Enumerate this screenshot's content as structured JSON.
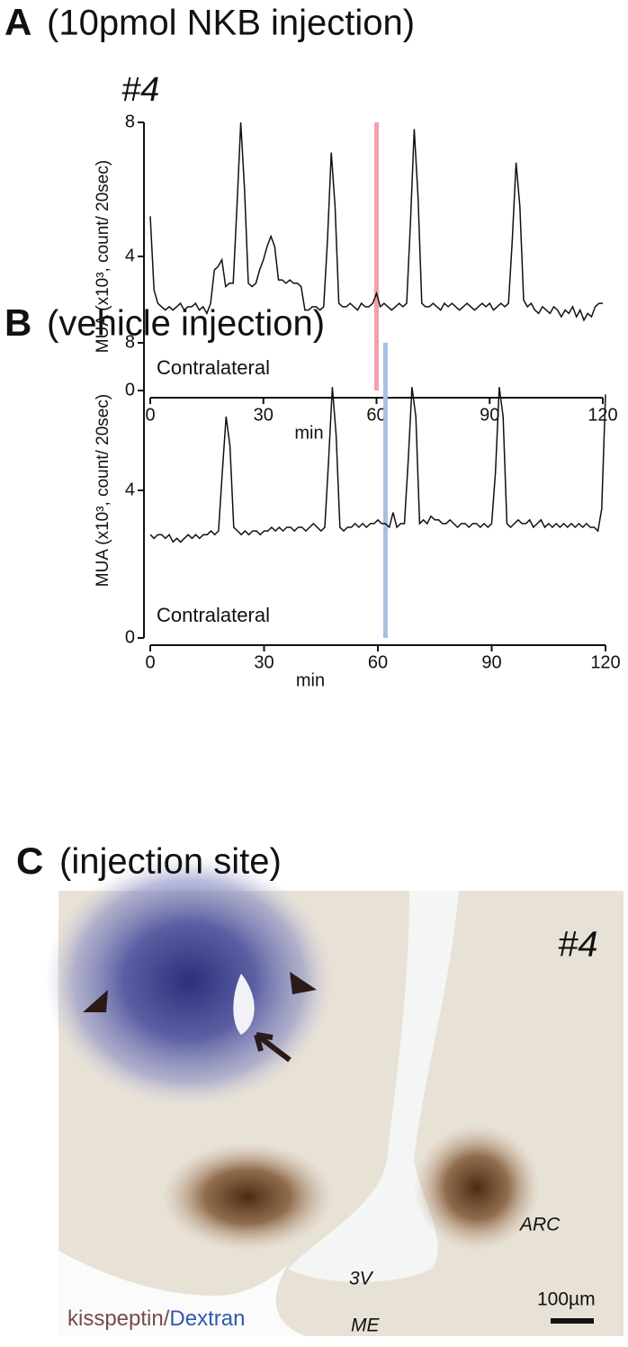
{
  "chart_data": [
    {
      "type": "line",
      "panel_label": "A",
      "title": "(10pmol NKB injection)",
      "subtitle": "#4",
      "ylabel": "MUA (x10³, count/ 20sec)",
      "xlabel": "min",
      "annotation": "Contralateral",
      "color": "#111111",
      "marker_x": 60,
      "marker_color": "#f2a0ae",
      "xlim": [
        0,
        120
      ],
      "ylim": [
        0,
        8
      ],
      "xticks": [
        0,
        30,
        60,
        90,
        120
      ],
      "yticks": [
        0,
        4,
        8
      ],
      "x": [
        0,
        1,
        2,
        3,
        4,
        5,
        6,
        7,
        8,
        9,
        10,
        11,
        12,
        13,
        14,
        15,
        16,
        17,
        18,
        19,
        20,
        21,
        22,
        23,
        24,
        25,
        26,
        27,
        28,
        29,
        30,
        31,
        32,
        33,
        34,
        35,
        36,
        37,
        38,
        39,
        40,
        41,
        42,
        43,
        44,
        45,
        46,
        47,
        48,
        49,
        50,
        51,
        52,
        53,
        54,
        55,
        56,
        57,
        58,
        59,
        60,
        61,
        62,
        63,
        64,
        65,
        66,
        67,
        68,
        69,
        70,
        71,
        72,
        73,
        74,
        75,
        76,
        77,
        78,
        79,
        80,
        81,
        82,
        83,
        84,
        85,
        86,
        87,
        88,
        89,
        90,
        91,
        92,
        93,
        94,
        95,
        96,
        97,
        98,
        99,
        100,
        101,
        102,
        103,
        104,
        105,
        106,
        107,
        108,
        109,
        110,
        111,
        112,
        113,
        114,
        115,
        116,
        117,
        118,
        119,
        120
      ],
      "values": [
        5.2,
        3.0,
        2.6,
        2.5,
        2.4,
        2.5,
        2.4,
        2.5,
        2.6,
        2.4,
        2.5,
        2.5,
        2.6,
        2.4,
        2.5,
        2.3,
        2.6,
        3.6,
        3.7,
        3.9,
        3.1,
        3.2,
        3.2,
        5.5,
        8.0,
        6.0,
        3.2,
        3.1,
        3.2,
        3.6,
        3.9,
        4.3,
        4.6,
        4.3,
        3.3,
        3.3,
        3.2,
        3.3,
        3.2,
        3.2,
        3.1,
        2.4,
        2.4,
        2.5,
        2.5,
        2.4,
        2.5,
        4.5,
        7.1,
        5.5,
        2.6,
        2.5,
        2.5,
        2.6,
        2.5,
        2.4,
        2.6,
        2.5,
        2.5,
        2.6,
        2.9,
        2.5,
        2.6,
        2.5,
        2.4,
        2.5,
        2.6,
        2.5,
        2.6,
        5.0,
        7.8,
        5.8,
        2.6,
        2.5,
        2.5,
        2.6,
        2.5,
        2.4,
        2.6,
        2.5,
        2.6,
        2.5,
        2.4,
        2.5,
        2.6,
        2.5,
        2.4,
        2.5,
        2.6,
        2.5,
        2.6,
        2.4,
        2.5,
        2.6,
        2.5,
        2.6,
        4.5,
        6.8,
        5.5,
        2.7,
        2.5,
        2.6,
        2.4,
        2.3,
        2.5,
        2.4,
        2.3,
        2.5,
        2.4,
        2.2,
        2.4,
        2.3,
        2.5,
        2.2,
        2.4,
        2.1,
        2.3,
        2.2,
        2.5,
        2.6,
        2.6
      ]
    },
    {
      "type": "line",
      "panel_label": "B",
      "title": "(vehicle injection)",
      "ylabel": "MUA (x10³, count/ 20sec)",
      "xlabel": "min",
      "annotation": "Contralateral",
      "color": "#111111",
      "marker_x": 62,
      "marker_color": "#a9bfe3",
      "xlim": [
        0,
        120
      ],
      "ylim": [
        0,
        8
      ],
      "xticks": [
        0,
        30,
        60,
        90,
        120
      ],
      "yticks": [
        0,
        4,
        8
      ],
      "x": [
        0,
        1,
        2,
        3,
        4,
        5,
        6,
        7,
        8,
        9,
        10,
        11,
        12,
        13,
        14,
        15,
        16,
        17,
        18,
        19,
        20,
        21,
        22,
        23,
        24,
        25,
        26,
        27,
        28,
        29,
        30,
        31,
        32,
        33,
        34,
        35,
        36,
        37,
        38,
        39,
        40,
        41,
        42,
        43,
        44,
        45,
        46,
        47,
        48,
        49,
        50,
        51,
        52,
        53,
        54,
        55,
        56,
        57,
        58,
        59,
        60,
        61,
        62,
        63,
        64,
        65,
        66,
        67,
        68,
        69,
        70,
        71,
        72,
        73,
        74,
        75,
        76,
        77,
        78,
        79,
        80,
        81,
        82,
        83,
        84,
        85,
        86,
        87,
        88,
        89,
        90,
        91,
        92,
        93,
        94,
        95,
        96,
        97,
        98,
        99,
        100,
        101,
        102,
        103,
        104,
        105,
        106,
        107,
        108,
        109,
        110,
        111,
        112,
        113,
        114,
        115,
        116,
        117,
        118,
        119,
        120
      ],
      "values": [
        2.8,
        2.7,
        2.8,
        2.8,
        2.7,
        2.8,
        2.6,
        2.7,
        2.6,
        2.7,
        2.8,
        2.7,
        2.8,
        2.7,
        2.8,
        2.8,
        2.9,
        2.8,
        2.9,
        4.5,
        6.0,
        5.2,
        3.0,
        2.9,
        2.8,
        2.9,
        2.8,
        2.9,
        2.9,
        2.8,
        2.9,
        2.9,
        3.0,
        2.9,
        3.0,
        2.9,
        3.0,
        3.0,
        2.9,
        3.0,
        3.0,
        2.9,
        3.0,
        3.1,
        3.0,
        2.9,
        3.0,
        4.8,
        6.8,
        5.5,
        3.0,
        2.9,
        3.0,
        3.0,
        3.1,
        3.0,
        3.1,
        3.0,
        3.1,
        3.1,
        3.2,
        3.1,
        3.1,
        3.0,
        3.4,
        3.0,
        3.1,
        3.1,
        4.8,
        6.8,
        6.0,
        3.1,
        3.2,
        3.1,
        3.3,
        3.2,
        3.2,
        3.1,
        3.1,
        3.2,
        3.1,
        3.0,
        3.1,
        3.1,
        3.0,
        3.1,
        3.1,
        3.0,
        3.1,
        3.0,
        3.1,
        4.5,
        6.8,
        6.0,
        3.1,
        3.0,
        3.1,
        3.2,
        3.1,
        3.1,
        3.2,
        3.0,
        3.1,
        3.2,
        3.0,
        3.1,
        3.0,
        3.1,
        3.0,
        3.1,
        3.0,
        3.1,
        3.0,
        3.1,
        3.0,
        3.1,
        3.0,
        3.0,
        2.9,
        3.5,
        6.6
      ]
    }
  ],
  "panel_c": {
    "panel_label": "C",
    "title": "(injection site)",
    "sample": "#4",
    "labels": [
      "ARC",
      "3V",
      "ME"
    ],
    "stain_1": "kisspeptin",
    "separator": "/",
    "stain_2": "Dextran",
    "scale_bar": "100µm"
  }
}
